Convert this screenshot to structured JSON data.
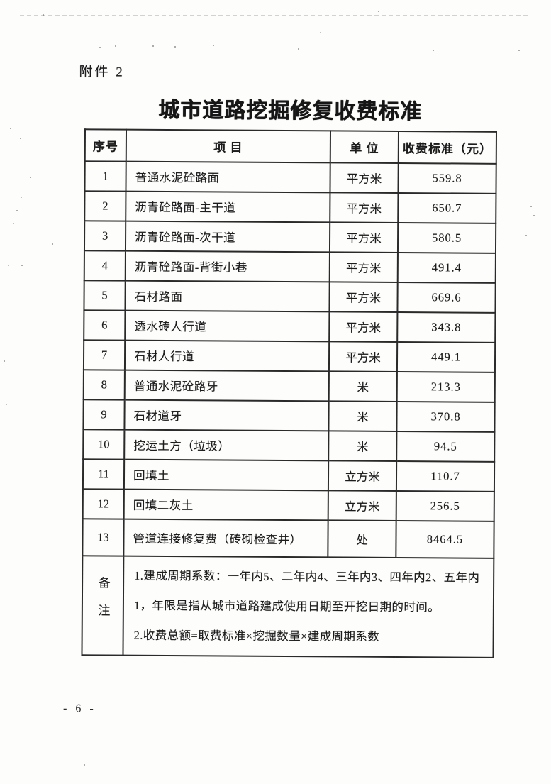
{
  "page": {
    "attachment_label": "附件 2",
    "title": "城市道路挖掘修复收费标准",
    "page_number": "- 6 -"
  },
  "table": {
    "headers": [
      "序号",
      "项  目",
      "单 位",
      "收费标准（元）"
    ],
    "rows": [
      {
        "no": "1",
        "item": "普通水泥砼路面",
        "unit": "平方米",
        "fee": "559.8"
      },
      {
        "no": "2",
        "item": "沥青砼路面-主干道",
        "unit": "平方米",
        "fee": "650.7"
      },
      {
        "no": "3",
        "item": "沥青砼路面-次干道",
        "unit": "平方米",
        "fee": "580.5"
      },
      {
        "no": "4",
        "item": "沥青砼路面-背街小巷",
        "unit": "平方米",
        "fee": "491.4"
      },
      {
        "no": "5",
        "item": "石材路面",
        "unit": "平方米",
        "fee": "669.6"
      },
      {
        "no": "6",
        "item": "透水砖人行道",
        "unit": "平方米",
        "fee": "343.8"
      },
      {
        "no": "7",
        "item": "石材人行道",
        "unit": "平方米",
        "fee": "449.1"
      },
      {
        "no": "8",
        "item": "普通水泥砼路牙",
        "unit": "米",
        "fee": "213.3"
      },
      {
        "no": "9",
        "item": "石材道牙",
        "unit": "米",
        "fee": "370.8"
      },
      {
        "no": "10",
        "item": "挖运土方（垃圾）",
        "unit": "米",
        "fee": "94.5"
      },
      {
        "no": "11",
        "item": "回填土",
        "unit": "立方米",
        "fee": "110.7"
      },
      {
        "no": "12",
        "item": "回填二灰土",
        "unit": "立方米",
        "fee": "256.5"
      },
      {
        "no": "13",
        "item": "管道连接修复费（砖砌检查井）",
        "unit": "处",
        "fee": "8464.5"
      }
    ],
    "remarks_label": "备注",
    "remarks": [
      "1.建成周期系数：一年内5、二年内4、三年内3、四年内2、五年内1，年限是指从城市道路建成使用日期至开挖日期的时间。",
      "2.收费总额=取费标准×挖掘数量×建成周期系数"
    ]
  }
}
